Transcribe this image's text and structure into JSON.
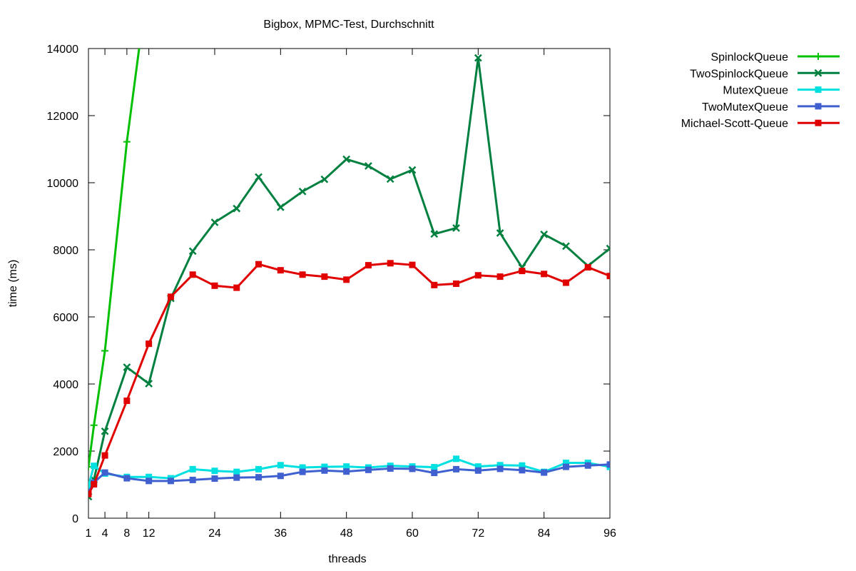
{
  "chart_data": {
    "type": "line",
    "title": "Bigbox, MPMC-Test, Durchschnitt",
    "xlabel": "threads",
    "ylabel": "time (ms)",
    "xlim": [
      1,
      96
    ],
    "ylim": [
      0,
      14000
    ],
    "xticks": [
      1,
      4,
      8,
      12,
      24,
      36,
      48,
      60,
      72,
      84,
      96
    ],
    "yticks": [
      0,
      2000,
      4000,
      6000,
      8000,
      10000,
      12000,
      14000
    ],
    "grid": false,
    "legend_position": "outside-top-right",
    "series": [
      {
        "name": "SpinlockQueue",
        "color": "#00c000",
        "marker": "plus",
        "x": [
          1,
          2,
          4,
          8,
          12
        ],
        "y": [
          1530,
          2770,
          4990,
          11220,
          16200
        ]
      },
      {
        "name": "TwoSpinlockQueue",
        "color": "#00803f",
        "marker": "cross",
        "x": [
          1,
          2,
          4,
          8,
          12,
          16,
          20,
          24,
          28,
          32,
          36,
          40,
          44,
          48,
          52,
          56,
          60,
          64,
          68,
          72,
          76,
          80,
          84,
          88,
          92,
          96
        ],
        "y": [
          640,
          1150,
          2590,
          4500,
          4010,
          6550,
          7960,
          8820,
          9230,
          10170,
          9270,
          9740,
          10100,
          10700,
          10500,
          10110,
          10380,
          8470,
          8650,
          13720,
          8500,
          7470,
          8460,
          8110,
          7520,
          8040
        ]
      },
      {
        "name": "MutexQueue",
        "color": "#00e0e0",
        "marker": "square",
        "x": [
          1,
          2,
          4,
          8,
          12,
          16,
          20,
          24,
          28,
          32,
          36,
          40,
          44,
          48,
          52,
          56,
          60,
          64,
          68,
          72,
          76,
          80,
          84,
          88,
          92,
          96
        ],
        "y": [
          970,
          1560,
          1330,
          1230,
          1230,
          1190,
          1460,
          1410,
          1380,
          1460,
          1580,
          1510,
          1530,
          1540,
          1510,
          1560,
          1540,
          1520,
          1770,
          1540,
          1580,
          1570,
          1380,
          1650,
          1650,
          1530
        ]
      },
      {
        "name": "TwoMutexQueue",
        "color": "#4060d0",
        "marker": "square",
        "x": [
          1,
          2,
          4,
          8,
          12,
          16,
          20,
          24,
          28,
          32,
          36,
          40,
          44,
          48,
          52,
          56,
          60,
          64,
          68,
          72,
          76,
          80,
          84,
          88,
          92,
          96
        ],
        "y": [
          780,
          1060,
          1360,
          1190,
          1110,
          1110,
          1140,
          1180,
          1210,
          1220,
          1260,
          1380,
          1420,
          1390,
          1440,
          1480,
          1470,
          1350,
          1460,
          1420,
          1470,
          1430,
          1360,
          1530,
          1570,
          1600
        ]
      },
      {
        "name": "Michael-Scott-Queue",
        "color": "#e00000",
        "marker": "square",
        "x": [
          1,
          2,
          4,
          8,
          12,
          16,
          20,
          24,
          28,
          32,
          36,
          40,
          44,
          48,
          52,
          56,
          60,
          64,
          68,
          72,
          76,
          80,
          84,
          88,
          92,
          96
        ],
        "y": [
          720,
          1010,
          1870,
          3500,
          5200,
          6600,
          7260,
          6930,
          6870,
          7570,
          7390,
          7260,
          7200,
          7110,
          7540,
          7600,
          7550,
          6950,
          6990,
          7240,
          7200,
          7370,
          7280,
          7020,
          7480,
          7220
        ]
      }
    ]
  }
}
